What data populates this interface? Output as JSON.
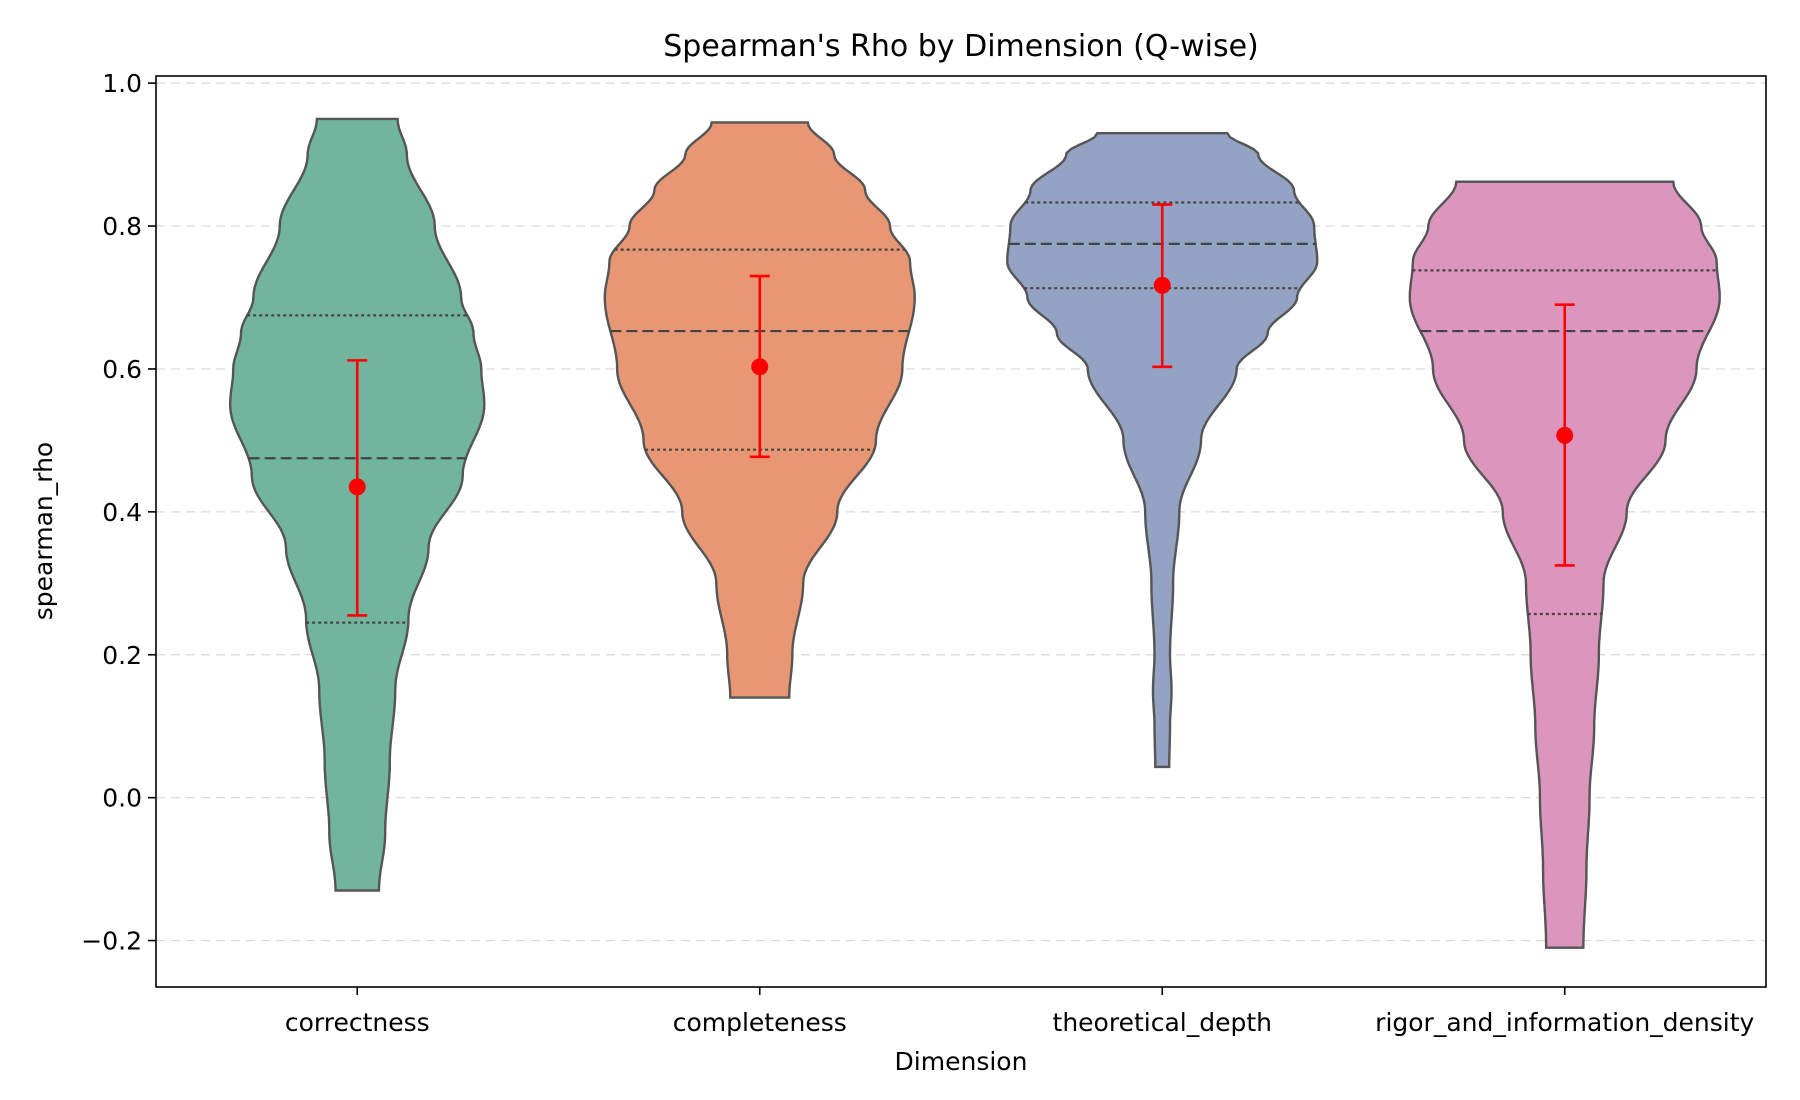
{
  "chart_data": {
    "type": "violin",
    "title": "Spearman's Rho by Dimension (Q-wise)",
    "xlabel": "Dimension",
    "ylabel": "spearman_rho",
    "ylim": [
      -0.265,
      1.01
    ],
    "yticks": [
      -0.2,
      0.0,
      0.2,
      0.4,
      0.6,
      0.8,
      1.0
    ],
    "ytick_labels": [
      "−0.2",
      "0.0",
      "0.2",
      "0.4",
      "0.6",
      "0.8",
      "1.0"
    ],
    "grid": "horizontal dashed",
    "categories": [
      "correctness",
      "completeness",
      "theoretical_depth",
      "rigor_and_information_density"
    ],
    "colors": [
      "#72b59f",
      "#e89774",
      "#94a3c3",
      "#dc95bd"
    ],
    "point_color": "#ff0000",
    "violins": [
      {
        "category": "correctness",
        "min": -0.13,
        "max": 0.95,
        "q1": 0.245,
        "median": 0.475,
        "q3": 0.675,
        "mean": 0.435,
        "err_low": 0.255,
        "err_high": 0.612,
        "profile": [
          [
            -0.13,
            0.14
          ],
          [
            -0.05,
            0.18
          ],
          [
            0.05,
            0.21
          ],
          [
            0.15,
            0.245
          ],
          [
            0.25,
            0.33
          ],
          [
            0.35,
            0.46
          ],
          [
            0.45,
            0.68
          ],
          [
            0.55,
            0.82
          ],
          [
            0.6,
            0.8
          ],
          [
            0.65,
            0.75
          ],
          [
            0.7,
            0.67
          ],
          [
            0.8,
            0.5
          ],
          [
            0.9,
            0.32
          ],
          [
            0.95,
            0.26
          ]
        ]
      },
      {
        "category": "completeness",
        "min": 0.14,
        "max": 0.945,
        "q1": 0.487,
        "median": 0.653,
        "q3": 0.767,
        "mean": 0.603,
        "err_low": 0.477,
        "err_high": 0.73,
        "profile": [
          [
            0.14,
            0.19
          ],
          [
            0.2,
            0.21
          ],
          [
            0.3,
            0.28
          ],
          [
            0.4,
            0.5
          ],
          [
            0.5,
            0.75
          ],
          [
            0.6,
            0.92
          ],
          [
            0.7,
            1.0
          ],
          [
            0.75,
            0.97
          ],
          [
            0.8,
            0.84
          ],
          [
            0.85,
            0.68
          ],
          [
            0.9,
            0.48
          ],
          [
            0.945,
            0.31
          ]
        ]
      },
      {
        "category": "theoretical_depth",
        "min": 0.043,
        "max": 0.93,
        "q1": 0.713,
        "median": 0.775,
        "q3": 0.833,
        "mean": 0.717,
        "err_low": 0.603,
        "err_high": 0.83,
        "profile": [
          [
            0.043,
            0.045
          ],
          [
            0.1,
            0.05
          ],
          [
            0.15,
            0.06
          ],
          [
            0.2,
            0.05
          ],
          [
            0.3,
            0.07
          ],
          [
            0.4,
            0.11
          ],
          [
            0.5,
            0.25
          ],
          [
            0.6,
            0.48
          ],
          [
            0.65,
            0.68
          ],
          [
            0.7,
            0.87
          ],
          [
            0.75,
            1.0
          ],
          [
            0.8,
            0.98
          ],
          [
            0.85,
            0.85
          ],
          [
            0.9,
            0.62
          ],
          [
            0.93,
            0.42
          ]
        ]
      },
      {
        "category": "rigor_and_information_density",
        "min": -0.21,
        "max": 0.862,
        "q1": 0.257,
        "median": 0.653,
        "q3": 0.738,
        "mean": 0.507,
        "err_low": 0.325,
        "err_high": 0.69,
        "profile": [
          [
            -0.21,
            0.12
          ],
          [
            -0.1,
            0.14
          ],
          [
            0.0,
            0.16
          ],
          [
            0.1,
            0.19
          ],
          [
            0.2,
            0.22
          ],
          [
            0.3,
            0.25
          ],
          [
            0.4,
            0.4
          ],
          [
            0.5,
            0.65
          ],
          [
            0.6,
            0.85
          ],
          [
            0.7,
            1.0
          ],
          [
            0.75,
            0.98
          ],
          [
            0.8,
            0.88
          ],
          [
            0.862,
            0.7
          ]
        ]
      }
    ]
  }
}
